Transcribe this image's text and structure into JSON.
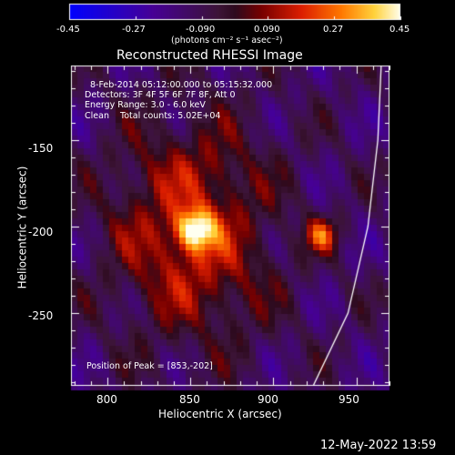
{
  "colorbar": {
    "ticks": [
      "-0.45",
      "-0.27",
      "-0.090",
      "0.090",
      "0.27",
      "0.45"
    ],
    "unit_label": "(photons cm⁻² s⁻¹ asec⁻²)",
    "range": [
      -0.45,
      0.45
    ]
  },
  "plot": {
    "title": "Reconstructed RHESSI Image",
    "info_lines": [
      "8-Feb-2014 05:12:00.000 to 05:15:32.000",
      "Detectors: 3F 4F 5F 6F 7F 8F, Att 0",
      "Energy Range: 3.0 - 6.0 keV",
      "Clean    Total counts: 5.02E+04"
    ],
    "peak_label": "Position of Peak = [853,-202]"
  },
  "chart_data": {
    "type": "heatmap",
    "title": "Reconstructed RHESSI Image",
    "xlabel": "Heliocentric X (arcsec)",
    "ylabel": "Heliocentric Y (arcsec)",
    "xlim": [
      778,
      970
    ],
    "ylim": [
      -292,
      -107
    ],
    "xticks": [
      800,
      850,
      900,
      950
    ],
    "yticks": [
      -150,
      -200,
      -250
    ],
    "colorbar_range": [
      -0.45,
      0.45
    ],
    "colormap": "hot-purple-blue",
    "sources": [
      {
        "x": 853,
        "y": -202,
        "peak": 0.45
      },
      {
        "x": 929,
        "y": -205,
        "peak": 0.3
      }
    ],
    "peak_position": [
      853,
      -202
    ],
    "limb": true
  },
  "footer": {
    "date": "12-May-2022 13:59"
  }
}
